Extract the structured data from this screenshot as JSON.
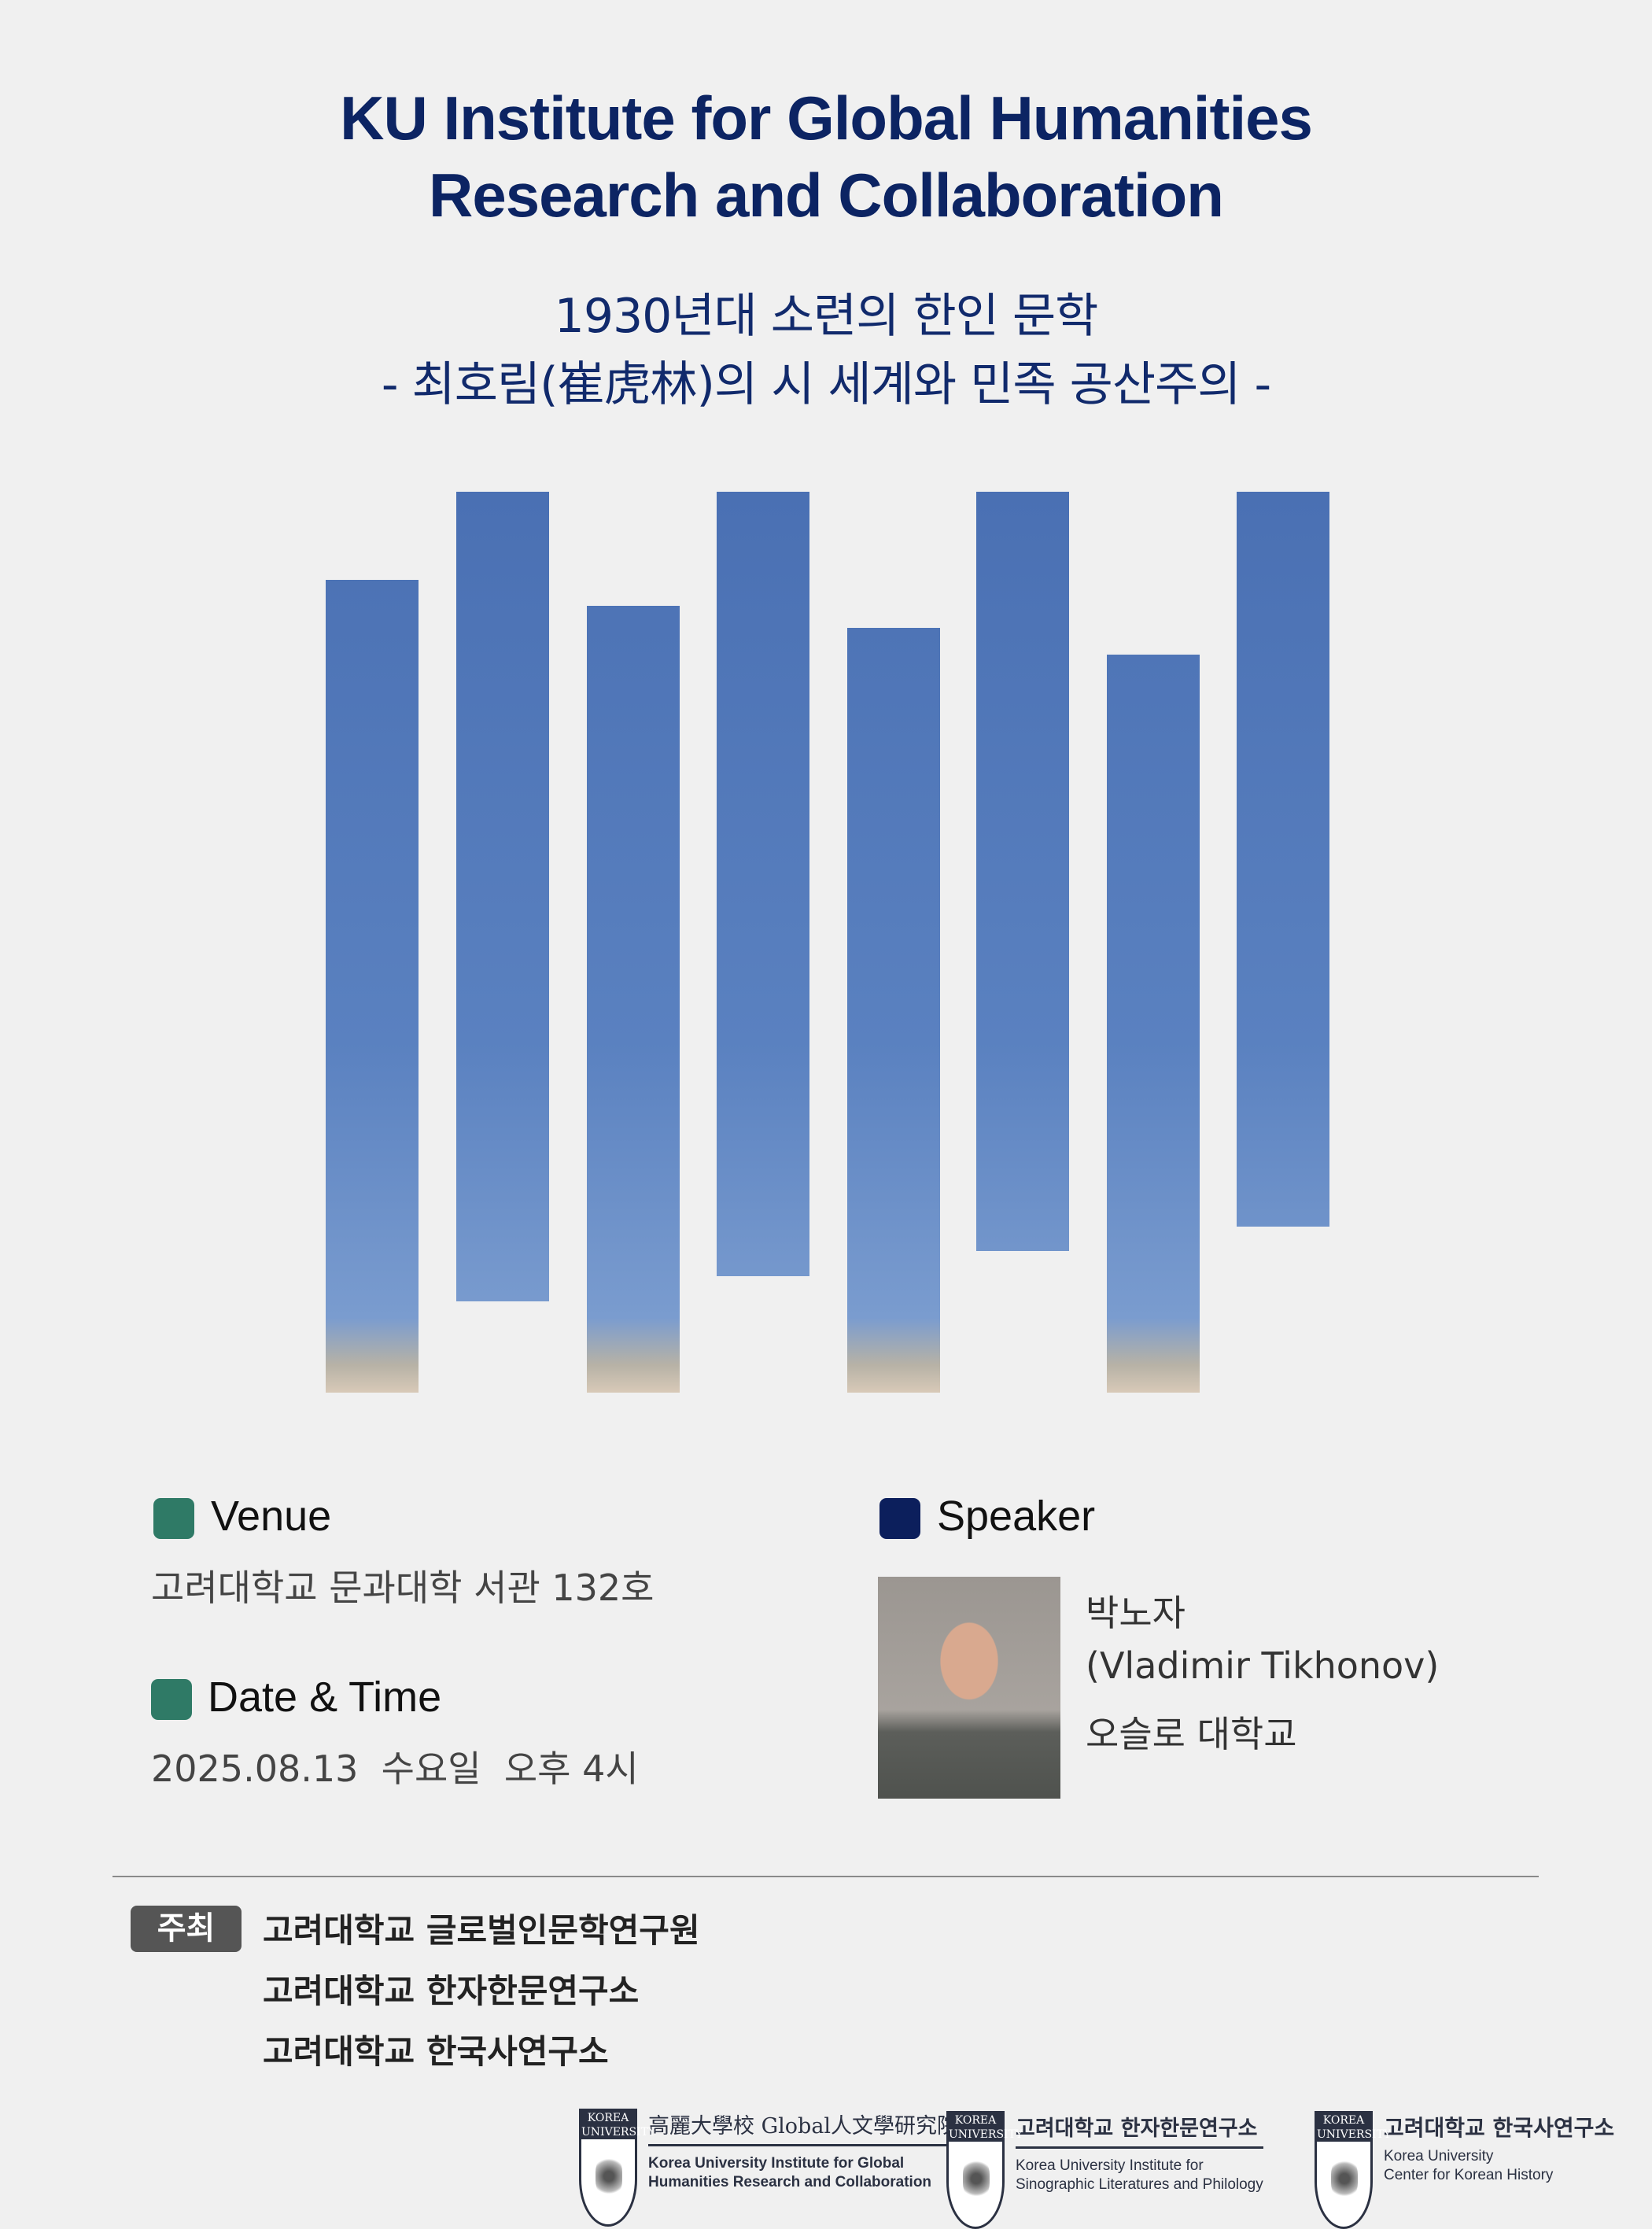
{
  "header": {
    "title_line1": "KU Institute for Global Humanities",
    "title_line2": "Research and Collaboration",
    "subtitle_line1": "1930년대 소련의 한인 문학",
    "subtitle_line2": "- 최호림(崔虎林)의 시 세계와 민족 공산주의 -"
  },
  "colors": {
    "title": "#0c2463",
    "venue_marker": "#2f7a66",
    "speaker_marker": "#0c1f5c",
    "host_badge": "#555555"
  },
  "venue": {
    "label": "Venue",
    "value": "고려대학교 문과대학 서관 132호"
  },
  "datetime": {
    "label": "Date & Time",
    "value": "2025.08.13  수요일  오후 4시"
  },
  "speaker": {
    "label": "Speaker",
    "name_ko": "박노자",
    "name_en": "(Vladimir Tikhonov)",
    "affiliation": "오슬로 대학교"
  },
  "hosts": {
    "badge": "주최",
    "items": [
      "고려대학교 글로벌인문학연구원",
      "고려대학교 한자한문연구소",
      "고려대학교 한국사연구소"
    ]
  },
  "logos": [
    {
      "emblem": "KOREA UNIVERSITY",
      "title": "高麗大學校 Global人文學研究院",
      "en_line1": "Korea University Institute for Global",
      "en_line2": "Humanities Research and Collaboration"
    },
    {
      "emblem": "KOREA UNIVERSITY",
      "title": "고려대학교 한자한문연구소",
      "en_line1": "Korea University Institute for",
      "en_line2": "Sinographic Literatures and Philology"
    },
    {
      "emblem": "KOREA UNIVERSITY",
      "title": "고려대학교 한국사연구소",
      "en_line1": "Korea University",
      "en_line2": "Center for Korean History"
    }
  ]
}
